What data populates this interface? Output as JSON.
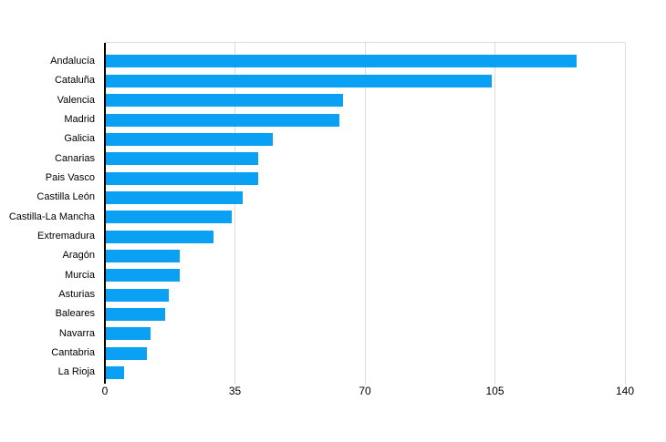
{
  "chart_data": {
    "type": "bar",
    "orientation": "horizontal",
    "title": "",
    "xlabel": "",
    "ylabel": "",
    "categories": [
      "Andalucía",
      "Cataluña",
      "Valencia",
      "Madrid",
      "Galicia",
      "Canarias",
      "Pais Vasco",
      "Castilla León",
      "Castilla-La Mancha",
      "Extremadura",
      "Aragón",
      "Murcia",
      "Asturias",
      "Baleares",
      "Navarra",
      "Cantabria",
      "La Rioja"
    ],
    "values": [
      127,
      104,
      64,
      63,
      45,
      41,
      41,
      37,
      34,
      29,
      20,
      20,
      17,
      16,
      12,
      11,
      5
    ],
    "xlim": [
      0,
      140
    ],
    "xticks": [
      0,
      35,
      70,
      105,
      140
    ],
    "grid": "vertical-gridlines",
    "legend": "none",
    "colors": {
      "bar": "#0aa1f4",
      "gridline": "#dcdcdc",
      "axis": "#000000",
      "text": "#000000",
      "background": "#ffffff"
    }
  }
}
